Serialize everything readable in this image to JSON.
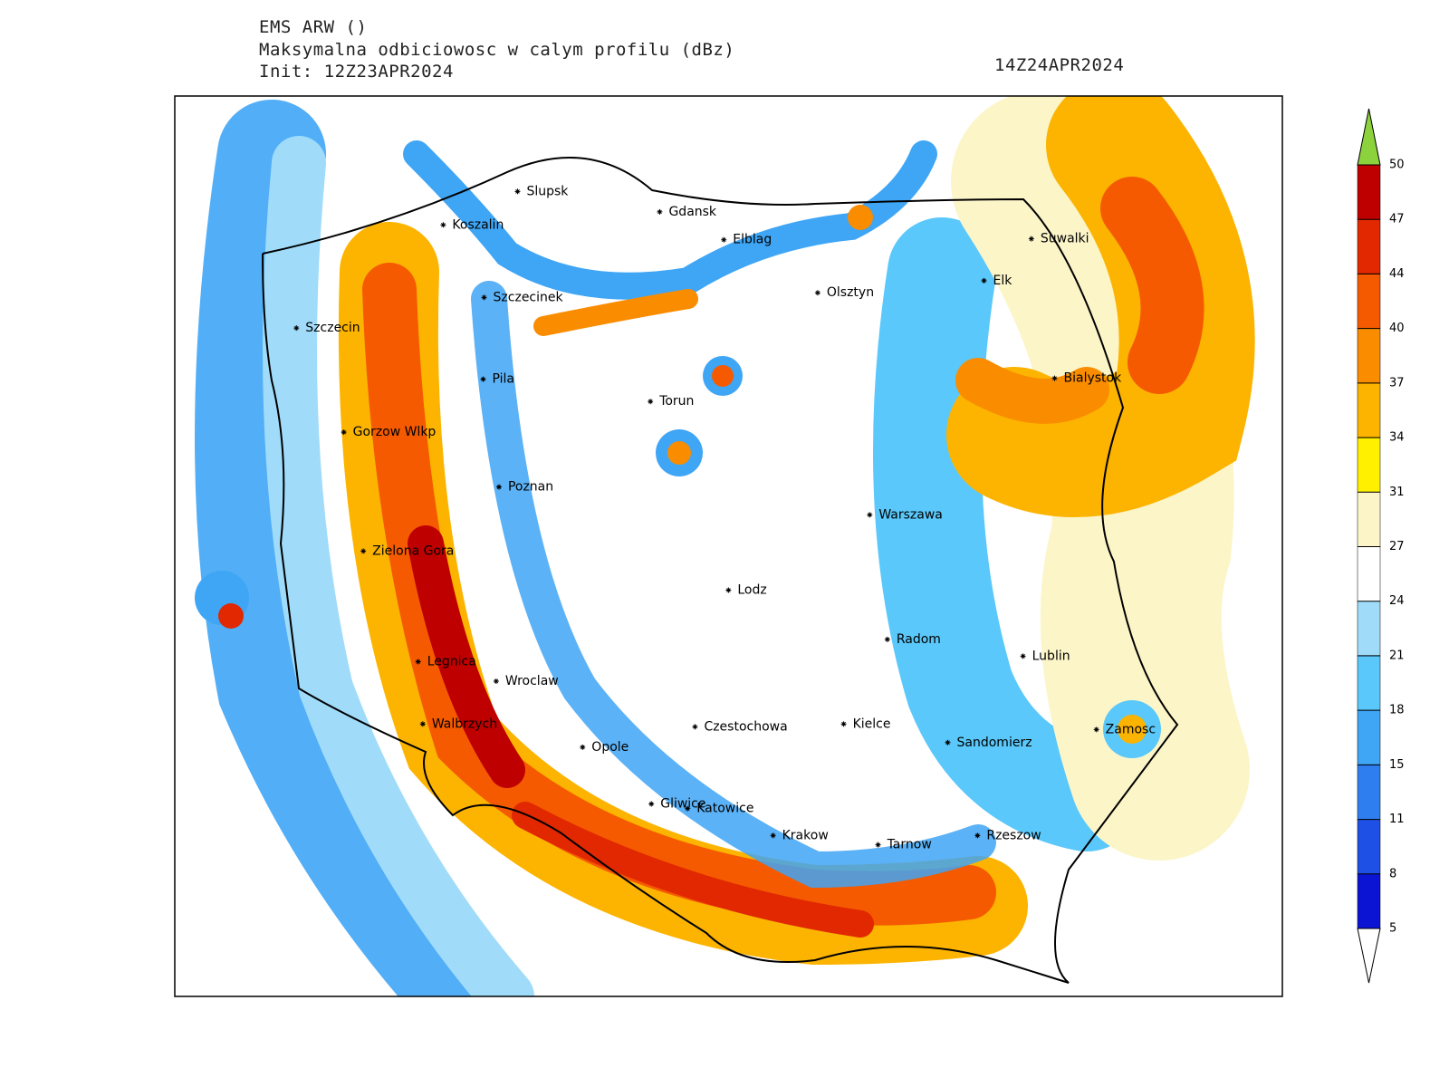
{
  "header": {
    "model": "EMS ARW ()",
    "title": "Maksymalna odbiciowosc w calym profilu (dBz)",
    "init": "Init: 12Z23APR2024",
    "valid": "14Z24APR2024"
  },
  "cities": [
    "Slupsk",
    "Koszalin",
    "Gdansk",
    "Elblag",
    "Szczecinek",
    "Olsztyn",
    "Suwalki",
    "Elk",
    "Szczecin",
    "Pila",
    "Torun",
    "Bialystok",
    "Gorzow Wlkp",
    "Poznan",
    "Warszawa",
    "Zielona Gora",
    "Lodz",
    "Radom",
    "Lublin",
    "Legnica",
    "Wroclaw",
    "Walbrzych",
    "Czestochowa",
    "Kielce",
    "Zamosc",
    "Opole",
    "Sandomierz",
    "Gliwice",
    "Katowice",
    "Krakow",
    "Tarnow",
    "Rzeszow"
  ],
  "colorbar": {
    "levels": [
      5,
      8,
      11,
      15,
      18,
      21,
      24,
      27,
      31,
      34,
      37,
      40,
      44,
      47,
      50
    ],
    "colors": [
      "#ffffff",
      "#0a14d2",
      "#1e50e6",
      "#2f7ef0",
      "#3fa5f5",
      "#5ac8fa",
      "#a0dcfa",
      "#ffffff",
      "#fcf5c8",
      "#fff000",
      "#fcb400",
      "#fa8c00",
      "#f55a00",
      "#e12800",
      "#be0000",
      "#8cd23c"
    ]
  }
}
